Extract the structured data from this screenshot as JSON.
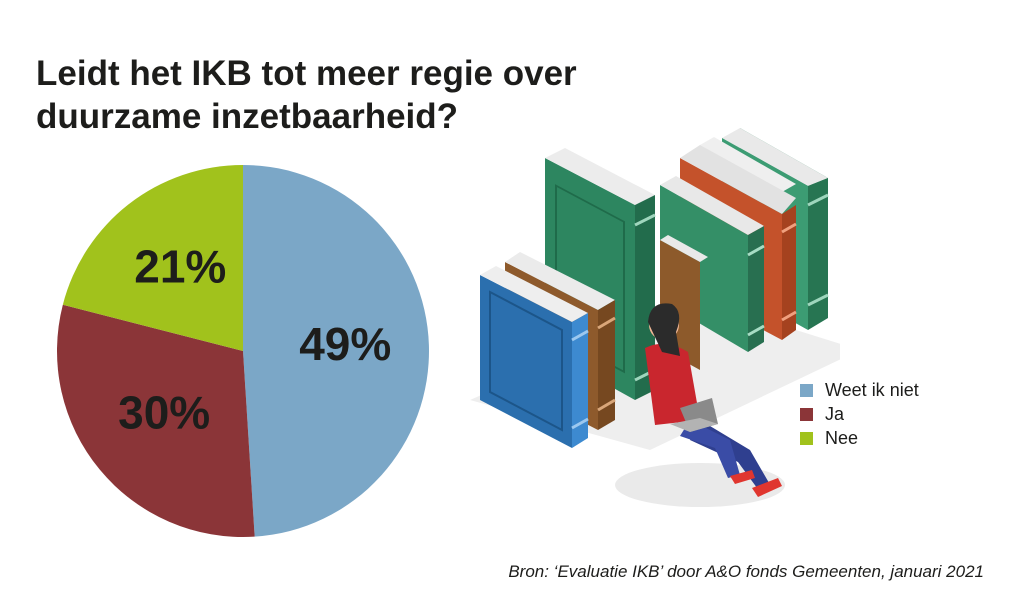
{
  "title_lines": [
    "Leidt het IKB tot meer regie over",
    "duurzame inzetbaarheid?"
  ],
  "chart_data": {
    "type": "pie",
    "title": "Leidt het IKB tot meer regie over duurzame inzetbaarheid?",
    "slices": [
      {
        "label": "Weet ik niet",
        "value": 49,
        "display": "49%",
        "color": "#7ba7c7"
      },
      {
        "label": "Ja",
        "value": 30,
        "display": "30%",
        "color": "#8b3538"
      },
      {
        "label": "Nee",
        "value": 21,
        "display": "21%",
        "color": "#a1c21c"
      }
    ],
    "legend_position": "right"
  },
  "source": "Bron: ‘Evaluatie IKB’ door A&O fonds Gemeenten, januari 2021"
}
